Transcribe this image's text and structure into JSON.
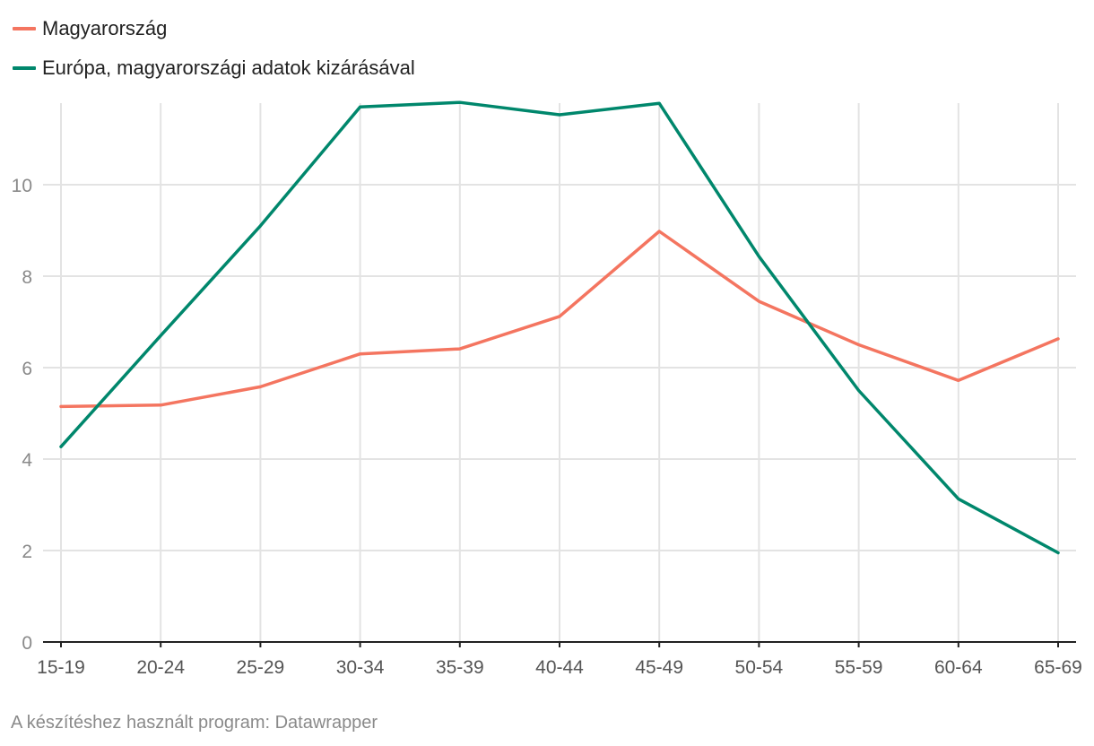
{
  "chart_data": {
    "type": "line",
    "categories": [
      "15-19",
      "20-24",
      "25-29",
      "30-34",
      "35-39",
      "40-44",
      "45-49",
      "50-54",
      "55-59",
      "60-64",
      "65-69"
    ],
    "series": [
      {
        "name": "Magyarország",
        "color": "#f47560",
        "values": [
          5.15,
          5.18,
          5.58,
          6.3,
          6.41,
          7.12,
          8.98,
          7.45,
          6.5,
          5.72,
          6.63
        ]
      },
      {
        "name": "Európa, magyarországi adatok kizárásával",
        "color": "#00876c",
        "values": [
          4.27,
          6.7,
          9.1,
          11.7,
          11.8,
          11.53,
          11.78,
          8.43,
          5.5,
          3.13,
          1.95
        ]
      }
    ],
    "ylim": [
      0,
      12
    ],
    "yticks": [
      0,
      2,
      4,
      6,
      8,
      10
    ],
    "xlabel": "",
    "ylabel": "",
    "grid": true,
    "legend_position": "top-left"
  },
  "footer": {
    "note": "A készítéshez használt program: Datawrapper"
  }
}
